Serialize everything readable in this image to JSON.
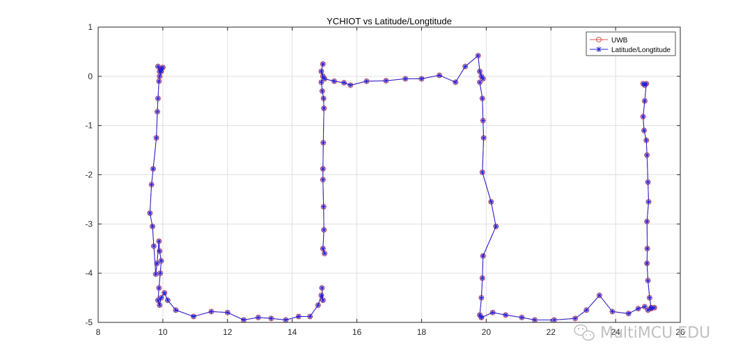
{
  "chart_data": {
    "type": "line",
    "title": "YCHIOT vs Latitude/Longtitude",
    "xlim": [
      8,
      26
    ],
    "ylim": [
      -5,
      1
    ],
    "xticks": [
      8,
      10,
      12,
      14,
      16,
      18,
      20,
      22,
      24,
      26
    ],
    "yticks": [
      1,
      0,
      -1,
      -2,
      -3,
      -4,
      -5
    ],
    "xtick_labels": [
      "8",
      "10",
      "12",
      "14",
      "16",
      "18",
      "20",
      "22",
      "24",
      "26"
    ],
    "ytick_labels": [
      "1",
      "0",
      "-1",
      "-2",
      "-3",
      "-4",
      "-5"
    ],
    "grid": true,
    "legend_position": "top-right",
    "series": [
      {
        "name": "UWB",
        "color": "#d9534f",
        "marker": "circle",
        "segments": [
          [
            [
              9.9,
              0.1
            ],
            [
              9.85,
              0.2
            ],
            [
              9.95,
              0.15
            ],
            [
              10.0,
              0.18
            ],
            [
              9.95,
              0.1
            ],
            [
              9.9,
              0.0
            ],
            [
              9.88,
              -0.1
            ],
            [
              9.85,
              -0.45
            ],
            [
              9.83,
              -0.72
            ],
            [
              9.8,
              -1.25
            ],
            [
              9.7,
              -1.88
            ],
            [
              9.65,
              -2.2
            ],
            [
              9.6,
              -2.78
            ],
            [
              9.68,
              -3.05
            ],
            [
              9.72,
              -3.45
            ],
            [
              9.78,
              -4.02
            ],
            [
              9.82,
              -3.8
            ],
            [
              9.88,
              -3.35
            ],
            [
              9.9,
              -3.55
            ],
            [
              9.95,
              -3.75
            ],
            [
              9.92,
              -4.0
            ],
            [
              9.88,
              -4.3
            ],
            [
              9.85,
              -4.55
            ],
            [
              9.9,
              -4.65
            ],
            [
              9.95,
              -4.5
            ],
            [
              10.05,
              -4.4
            ],
            [
              10.15,
              -4.55
            ],
            [
              10.4,
              -4.75
            ],
            [
              10.95,
              -4.88
            ],
            [
              11.5,
              -4.78
            ],
            [
              12.0,
              -4.8
            ],
            [
              12.5,
              -4.95
            ],
            [
              12.95,
              -4.9
            ],
            [
              13.35,
              -4.92
            ],
            [
              13.8,
              -4.95
            ],
            [
              14.2,
              -4.88
            ],
            [
              14.55,
              -4.88
            ],
            [
              14.8,
              -4.65
            ],
            [
              14.9,
              -4.45
            ],
            [
              14.95,
              -4.55
            ],
            [
              14.92,
              -4.3
            ]
          ],
          [
            [
              14.95,
              0.25
            ],
            [
              14.9,
              0.1
            ],
            [
              14.95,
              0.0
            ],
            [
              14.9,
              -0.12
            ],
            [
              14.93,
              -0.3
            ],
            [
              14.97,
              -0.45
            ],
            [
              14.98,
              -0.65
            ],
            [
              14.96,
              -1.35
            ],
            [
              14.95,
              -1.88
            ],
            [
              14.95,
              -2.1
            ],
            [
              14.97,
              -2.65
            ],
            [
              14.98,
              -3.12
            ],
            [
              14.95,
              -3.5
            ],
            [
              15.0,
              -3.6
            ]
          ],
          [
            [
              15.0,
              -0.05
            ],
            [
              15.3,
              -0.1
            ],
            [
              15.6,
              -0.13
            ],
            [
              15.8,
              -0.18
            ],
            [
              16.3,
              -0.1
            ],
            [
              16.9,
              -0.09
            ],
            [
              17.5,
              -0.05
            ],
            [
              18.0,
              -0.05
            ],
            [
              18.55,
              0.02
            ],
            [
              19.05,
              -0.12
            ],
            [
              19.35,
              0.2
            ],
            [
              19.75,
              0.42
            ],
            [
              19.8,
              0.1
            ],
            [
              19.85,
              0.0
            ],
            [
              19.9,
              -0.05
            ]
          ],
          [
            [
              19.8,
              -0.12
            ],
            [
              19.88,
              -0.45
            ],
            [
              19.9,
              -0.9
            ],
            [
              19.92,
              -1.25
            ],
            [
              19.88,
              -1.95
            ],
            [
              20.15,
              -2.55
            ],
            [
              20.3,
              -3.05
            ],
            [
              19.9,
              -3.65
            ],
            [
              19.88,
              -4.1
            ],
            [
              19.85,
              -4.5
            ],
            [
              19.8,
              -4.85
            ],
            [
              19.85,
              -4.9
            ]
          ],
          [
            [
              19.85,
              -4.9
            ],
            [
              20.2,
              -4.8
            ],
            [
              20.6,
              -4.85
            ],
            [
              21.1,
              -4.9
            ],
            [
              21.5,
              -4.95
            ],
            [
              22.1,
              -4.95
            ],
            [
              22.75,
              -4.92
            ],
            [
              23.1,
              -4.75
            ],
            [
              23.5,
              -4.45
            ],
            [
              23.9,
              -4.78
            ],
            [
              24.4,
              -4.82
            ],
            [
              24.7,
              -4.72
            ],
            [
              24.9,
              -4.68
            ],
            [
              25.0,
              -4.75
            ],
            [
              25.1,
              -4.72
            ],
            [
              25.2,
              -4.7
            ]
          ],
          [
            [
              24.85,
              -0.15
            ],
            [
              24.9,
              -0.18
            ],
            [
              24.95,
              -0.15
            ],
            [
              24.9,
              -0.5
            ],
            [
              24.85,
              -0.82
            ],
            [
              24.88,
              -1.1
            ],
            [
              24.95,
              -1.3
            ],
            [
              24.97,
              -1.6
            ],
            [
              25.0,
              -2.15
            ],
            [
              25.02,
              -2.55
            ],
            [
              24.97,
              -2.95
            ],
            [
              24.98,
              -3.5
            ],
            [
              24.97,
              -3.8
            ],
            [
              25.0,
              -4.15
            ],
            [
              25.05,
              -4.5
            ],
            [
              25.1,
              -4.7
            ]
          ]
        ]
      },
      {
        "name": "Latitude/Longtitude",
        "color": "#1f1fd9",
        "marker": "asterisk",
        "segments": [
          [
            [
              9.9,
              0.1
            ],
            [
              9.85,
              0.2
            ],
            [
              9.95,
              0.15
            ],
            [
              10.0,
              0.18
            ],
            [
              9.95,
              0.1
            ],
            [
              9.9,
              0.0
            ],
            [
              9.88,
              -0.1
            ],
            [
              9.85,
              -0.45
            ],
            [
              9.83,
              -0.72
            ],
            [
              9.8,
              -1.25
            ],
            [
              9.7,
              -1.88
            ],
            [
              9.65,
              -2.2
            ],
            [
              9.6,
              -2.78
            ],
            [
              9.68,
              -3.05
            ],
            [
              9.72,
              -3.45
            ],
            [
              9.78,
              -4.02
            ],
            [
              9.82,
              -3.8
            ],
            [
              9.88,
              -3.35
            ],
            [
              9.9,
              -3.55
            ],
            [
              9.95,
              -3.75
            ],
            [
              9.92,
              -4.0
            ],
            [
              9.88,
              -4.3
            ],
            [
              9.85,
              -4.55
            ],
            [
              9.9,
              -4.65
            ],
            [
              9.95,
              -4.5
            ],
            [
              10.05,
              -4.4
            ],
            [
              10.15,
              -4.55
            ],
            [
              10.4,
              -4.75
            ],
            [
              10.95,
              -4.88
            ],
            [
              11.5,
              -4.78
            ],
            [
              12.0,
              -4.8
            ],
            [
              12.5,
              -4.95
            ],
            [
              12.95,
              -4.9
            ],
            [
              13.35,
              -4.92
            ],
            [
              13.8,
              -4.95
            ],
            [
              14.2,
              -4.88
            ],
            [
              14.55,
              -4.88
            ],
            [
              14.8,
              -4.65
            ],
            [
              14.9,
              -4.45
            ],
            [
              14.95,
              -4.55
            ],
            [
              14.92,
              -4.3
            ]
          ],
          [
            [
              14.95,
              0.25
            ],
            [
              14.9,
              0.1
            ],
            [
              14.95,
              0.0
            ],
            [
              14.9,
              -0.12
            ],
            [
              14.93,
              -0.3
            ],
            [
              14.97,
              -0.45
            ],
            [
              14.98,
              -0.65
            ],
            [
              14.96,
              -1.35
            ],
            [
              14.95,
              -1.88
            ],
            [
              14.95,
              -2.1
            ],
            [
              14.97,
              -2.65
            ],
            [
              14.98,
              -3.12
            ],
            [
              14.95,
              -3.5
            ],
            [
              15.0,
              -3.6
            ]
          ],
          [
            [
              15.0,
              -0.05
            ],
            [
              15.3,
              -0.1
            ],
            [
              15.6,
              -0.13
            ],
            [
              15.8,
              -0.18
            ],
            [
              16.3,
              -0.1
            ],
            [
              16.9,
              -0.09
            ],
            [
              17.5,
              -0.05
            ],
            [
              18.0,
              -0.05
            ],
            [
              18.55,
              0.02
            ],
            [
              19.05,
              -0.12
            ],
            [
              19.35,
              0.2
            ],
            [
              19.75,
              0.42
            ],
            [
              19.8,
              0.1
            ],
            [
              19.85,
              0.0
            ],
            [
              19.9,
              -0.05
            ]
          ],
          [
            [
              19.8,
              -0.12
            ],
            [
              19.88,
              -0.45
            ],
            [
              19.9,
              -0.9
            ],
            [
              19.92,
              -1.25
            ],
            [
              19.88,
              -1.95
            ],
            [
              20.15,
              -2.55
            ],
            [
              20.3,
              -3.05
            ],
            [
              19.9,
              -3.65
            ],
            [
              19.88,
              -4.1
            ],
            [
              19.85,
              -4.5
            ],
            [
              19.8,
              -4.85
            ],
            [
              19.85,
              -4.9
            ]
          ],
          [
            [
              19.85,
              -4.9
            ],
            [
              20.2,
              -4.8
            ],
            [
              20.6,
              -4.85
            ],
            [
              21.1,
              -4.9
            ],
            [
              21.5,
              -4.95
            ],
            [
              22.1,
              -4.95
            ],
            [
              22.75,
              -4.92
            ],
            [
              23.1,
              -4.75
            ],
            [
              23.5,
              -4.45
            ],
            [
              23.9,
              -4.78
            ],
            [
              24.4,
              -4.82
            ],
            [
              24.7,
              -4.72
            ],
            [
              24.9,
              -4.68
            ],
            [
              25.0,
              -4.75
            ],
            [
              25.1,
              -4.72
            ],
            [
              25.2,
              -4.7
            ]
          ],
          [
            [
              24.85,
              -0.15
            ],
            [
              24.9,
              -0.18
            ],
            [
              24.95,
              -0.15
            ],
            [
              24.9,
              -0.5
            ],
            [
              24.85,
              -0.82
            ],
            [
              24.88,
              -1.1
            ],
            [
              24.95,
              -1.3
            ],
            [
              24.97,
              -1.6
            ],
            [
              25.0,
              -2.15
            ],
            [
              25.02,
              -2.55
            ],
            [
              24.97,
              -2.95
            ],
            [
              24.98,
              -3.5
            ],
            [
              24.97,
              -3.8
            ],
            [
              25.0,
              -4.15
            ],
            [
              25.05,
              -4.5
            ],
            [
              25.1,
              -4.7
            ]
          ]
        ]
      }
    ]
  },
  "watermark": {
    "text": "MultiMCU EDU",
    "icon": "wechat-icon",
    "color": "#b9b9b9"
  }
}
